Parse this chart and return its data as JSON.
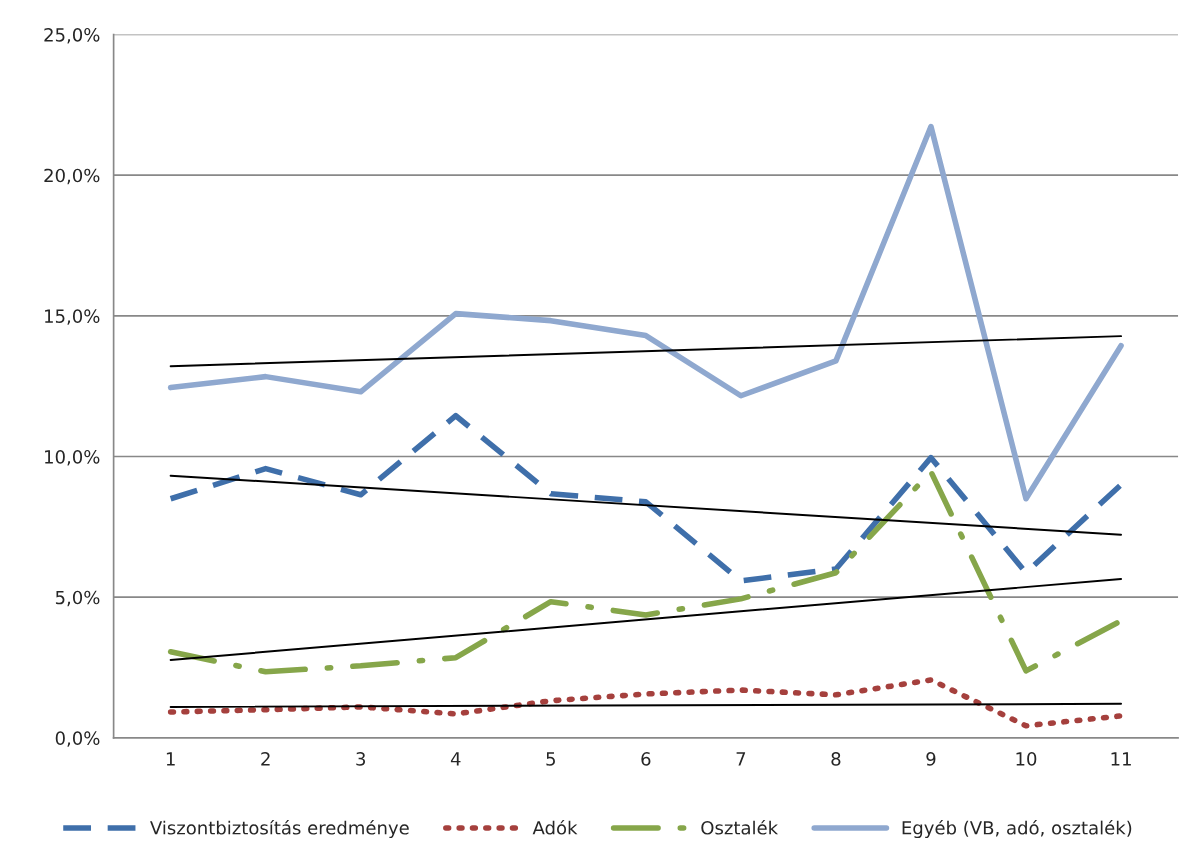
{
  "chart_data": {
    "type": "line",
    "categories": [
      "1",
      "2",
      "3",
      "4",
      "5",
      "6",
      "7",
      "8",
      "9",
      "10",
      "11"
    ],
    "series": [
      {
        "name": "Viszontbiztosítás eredménye",
        "color": "#3f6faa",
        "line_style": "dashed",
        "values": [
          8.5,
          9.57,
          8.64,
          11.45,
          8.68,
          8.39,
          5.58,
          6.0,
          9.96,
          5.87,
          9.0
        ]
      },
      {
        "name": "Adók",
        "color": "#a5403d",
        "line_style": "dotted",
        "values": [
          0.92,
          1.0,
          1.1,
          0.85,
          1.32,
          1.56,
          1.7,
          1.53,
          2.06,
          0.43,
          0.78
        ]
      },
      {
        "name": "Osztalék",
        "color": "#86a64a",
        "line_style": "dashdot",
        "values": [
          3.06,
          2.35,
          2.56,
          2.85,
          4.84,
          4.37,
          4.94,
          5.87,
          9.46,
          2.38,
          4.16
        ]
      },
      {
        "name": "Egyéb (VB, adó, osztalék)",
        "color": "#8fa8cf",
        "line_style": "solid",
        "values": [
          12.45,
          12.84,
          12.3,
          15.08,
          14.83,
          14.3,
          12.16,
          13.4,
          21.73,
          8.5,
          13.94
        ]
      },
      {
        "color": "#000000",
        "line_style": "solid",
        "x": [
          "1",
          "11"
        ],
        "values": [
          9.32,
          7.22
        ]
      },
      {
        "color": "#000000",
        "line_style": "solid",
        "x": [
          "1",
          "11"
        ],
        "values": [
          1.1,
          1.21
        ]
      },
      {
        "color": "#000000",
        "line_style": "solid",
        "x": [
          "1",
          "11"
        ],
        "values": [
          2.77,
          5.65
        ]
      },
      {
        "color": "#000000",
        "line_style": "solid",
        "x": [
          "1",
          "11"
        ],
        "values": [
          13.21,
          14.28
        ]
      }
    ],
    "ylim": [
      0,
      25
    ],
    "yticks": [
      {
        "value": 0,
        "label": "0,0%"
      },
      {
        "value": 5,
        "label": "5,0%"
      },
      {
        "value": 10,
        "label": "10,0%"
      },
      {
        "value": 15,
        "label": "15,0%"
      },
      {
        "value": 20,
        "label": "20,0%"
      },
      {
        "value": 25,
        "label": "25,0%"
      }
    ],
    "grid": "y",
    "legend": "bottom",
    "marker": "none"
  }
}
